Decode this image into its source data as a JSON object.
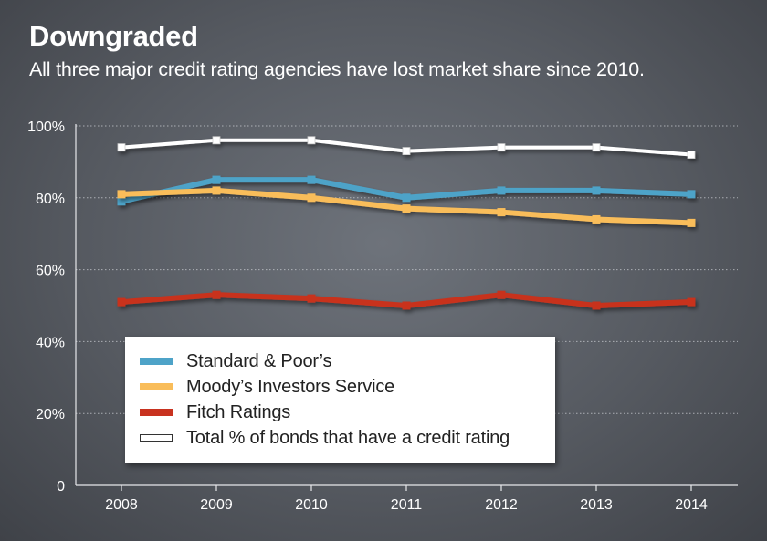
{
  "header": {
    "title": "Downgraded",
    "subtitle": "All three major credit rating agencies have lost market share since 2010."
  },
  "chart_data": {
    "type": "line",
    "title": "Downgraded",
    "subtitle": "All three major credit rating agencies have lost market share since 2010.",
    "xlabel": "",
    "ylabel": "",
    "categories": [
      "2008",
      "2009",
      "2010",
      "2011",
      "2012",
      "2013",
      "2014"
    ],
    "ylim": [
      0,
      100
    ],
    "yticks": [
      0,
      20,
      40,
      60,
      80,
      100
    ],
    "ytick_labels": [
      "0",
      "20%",
      "40%",
      "60%",
      "80%",
      "100%"
    ],
    "grid": true,
    "legend_position": "bottom-left",
    "series": [
      {
        "name": "Standard & Poor’s",
        "color": "#4ea3c8",
        "values": [
          79,
          85,
          85,
          80,
          82,
          82,
          81
        ]
      },
      {
        "name": "Moody’s Investors Service",
        "color": "#f9bd5a",
        "values": [
          81,
          82,
          80,
          77,
          76,
          74,
          73
        ]
      },
      {
        "name": "Fitch Ratings",
        "color": "#c8321f",
        "values": [
          51,
          53,
          52,
          50,
          53,
          50,
          51
        ]
      },
      {
        "name": "Total % of bonds that have a credit rating",
        "color": "#ffffff",
        "values": [
          94,
          96,
          96,
          93,
          94,
          94,
          92
        ]
      }
    ]
  }
}
